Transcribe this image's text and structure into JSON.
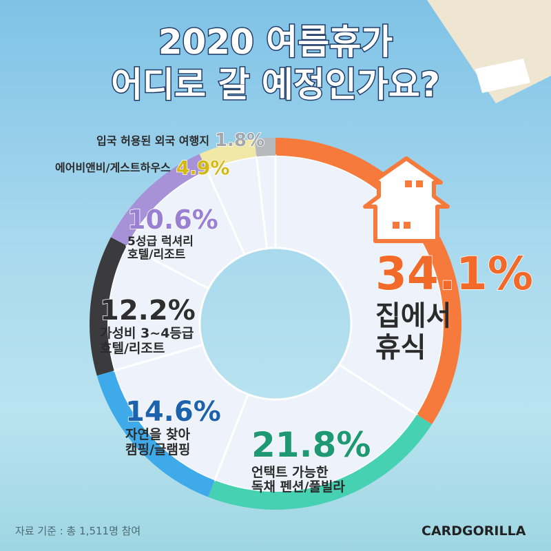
{
  "chart_data": {
    "type": "pie",
    "title": "2020 여름휴가\n어디로 갈 예정인가요?",
    "categories": [
      "집에서\n휴식",
      "언택트 가능한\n독채 펜션/풀빌라",
      "자연을 찾아\n캠핑/글램핑",
      "가성비 3~4등급\n호텔/리조트",
      "5성급 럭셔리\n호텔/리조트",
      "에어비앤비/게스트하우스",
      "입국 허용된 외국 여행지"
    ],
    "values": [
      34.1,
      21.8,
      14.6,
      12.2,
      10.6,
      4.9,
      1.8
    ],
    "value_labels": [
      "34.1%",
      "21.8%",
      "14.6%",
      "12.2%",
      "10.6%",
      "4.9%",
      "1.8%"
    ],
    "colors": [
      "#f57a3c",
      "#46d1b2",
      "#3eaaea",
      "#3b3b3d",
      "#a792d8",
      "#f1e7a6",
      "#b7b9bd"
    ],
    "label_colors": [
      "#f26a2a",
      "#1f9874",
      "#1c62ad",
      "#2e2e30",
      "#9a80d2",
      "#d4b914",
      "#a3a6ab"
    ],
    "source": "자료 기준 : 총 1,511명 참여",
    "brand": "CARDGORILLA"
  }
}
